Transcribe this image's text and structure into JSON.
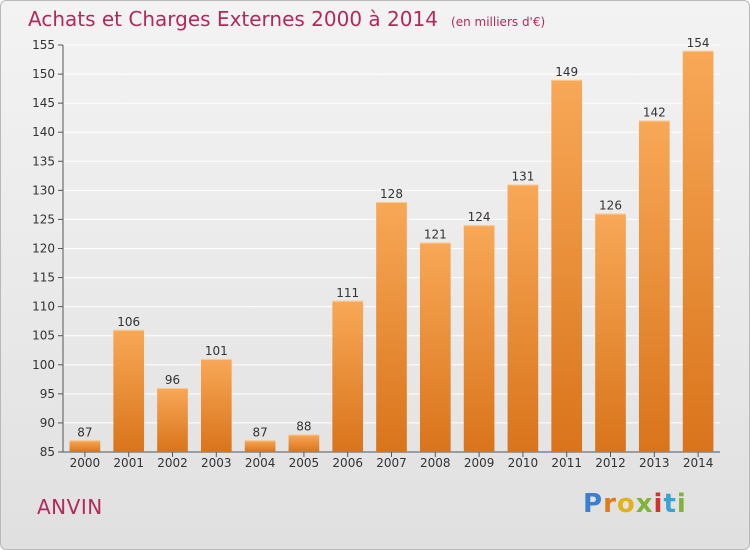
{
  "header": {
    "title": "Achats et Charges Externes 2000 à 2014",
    "subtitle": "(en milliers d'€)"
  },
  "footer": {
    "commune": "ANVIN",
    "logo_text": "Proxiti"
  },
  "colors": {
    "title": "#b22a5d",
    "bar_light": "#f8a857",
    "bar_dark": "#d9741b",
    "grid": "#ffffff",
    "logo_letters": [
      "#3a7fd1",
      "#e07a1c",
      "#e2b21c",
      "#7fb33a",
      "#d1352a",
      "#3aa3d1",
      "#7fb33a"
    ]
  },
  "chart_data": {
    "type": "bar",
    "title": "Achats et Charges Externes 2000 à 2014",
    "subtitle": "(en milliers d'€)",
    "xlabel": "",
    "ylabel": "",
    "categories": [
      "2000",
      "2001",
      "2002",
      "2003",
      "2004",
      "2005",
      "2006",
      "2007",
      "2008",
      "2009",
      "2010",
      "2011",
      "2012",
      "2013",
      "2014"
    ],
    "values": [
      87,
      106,
      96,
      101,
      87,
      88,
      111,
      128,
      121,
      124,
      131,
      149,
      126,
      142,
      154
    ],
    "ylim": [
      85,
      155
    ],
    "yticks": [
      85,
      90,
      95,
      100,
      105,
      110,
      115,
      120,
      125,
      130,
      135,
      140,
      145,
      150,
      155
    ],
    "grid": true,
    "legend": "none"
  }
}
